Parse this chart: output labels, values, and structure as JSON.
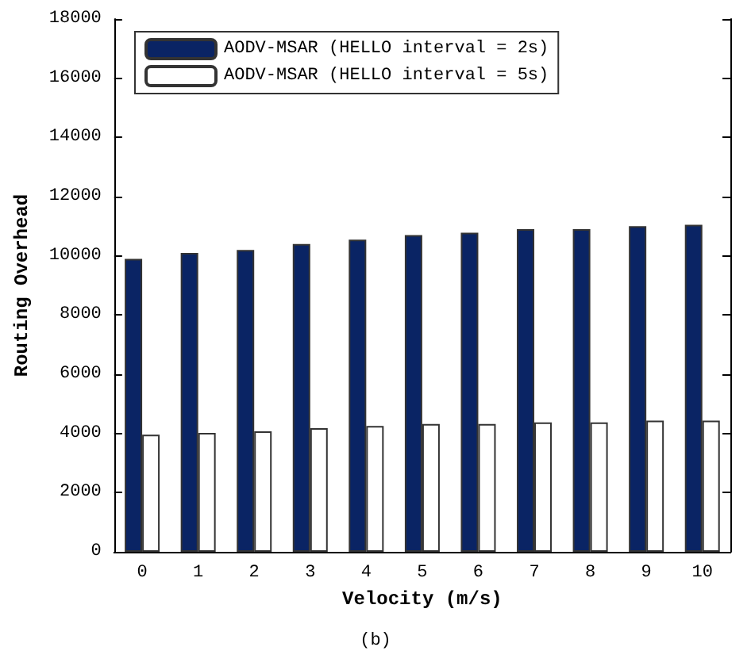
{
  "chart_data": {
    "type": "bar",
    "xlabel": "Velocity (m/s)",
    "ylabel": "Routing Overhead",
    "annotations": [
      "(b)"
    ],
    "categories": [
      "0",
      "1",
      "2",
      "3",
      "4",
      "5",
      "6",
      "7",
      "8",
      "9",
      "10"
    ],
    "series": [
      {
        "name": "AODV-MSAR (HELLO interval = 2s)",
        "color": "#0a2464",
        "values": [
          9900,
          10100,
          10200,
          10400,
          10550,
          10700,
          10780,
          10900,
          10900,
          11000,
          11050
        ]
      },
      {
        "name": "AODV-MSAR (HELLO interval = 5s)",
        "color": "#ffffff",
        "values": [
          3960,
          4020,
          4070,
          4180,
          4250,
          4320,
          4320,
          4370,
          4370,
          4430,
          4430
        ]
      }
    ],
    "ylim": [
      0,
      18000
    ],
    "yticks": [
      0,
      2000,
      4000,
      6000,
      8000,
      10000,
      12000,
      14000,
      16000,
      18000
    ],
    "grid": false,
    "legend": "top left"
  }
}
